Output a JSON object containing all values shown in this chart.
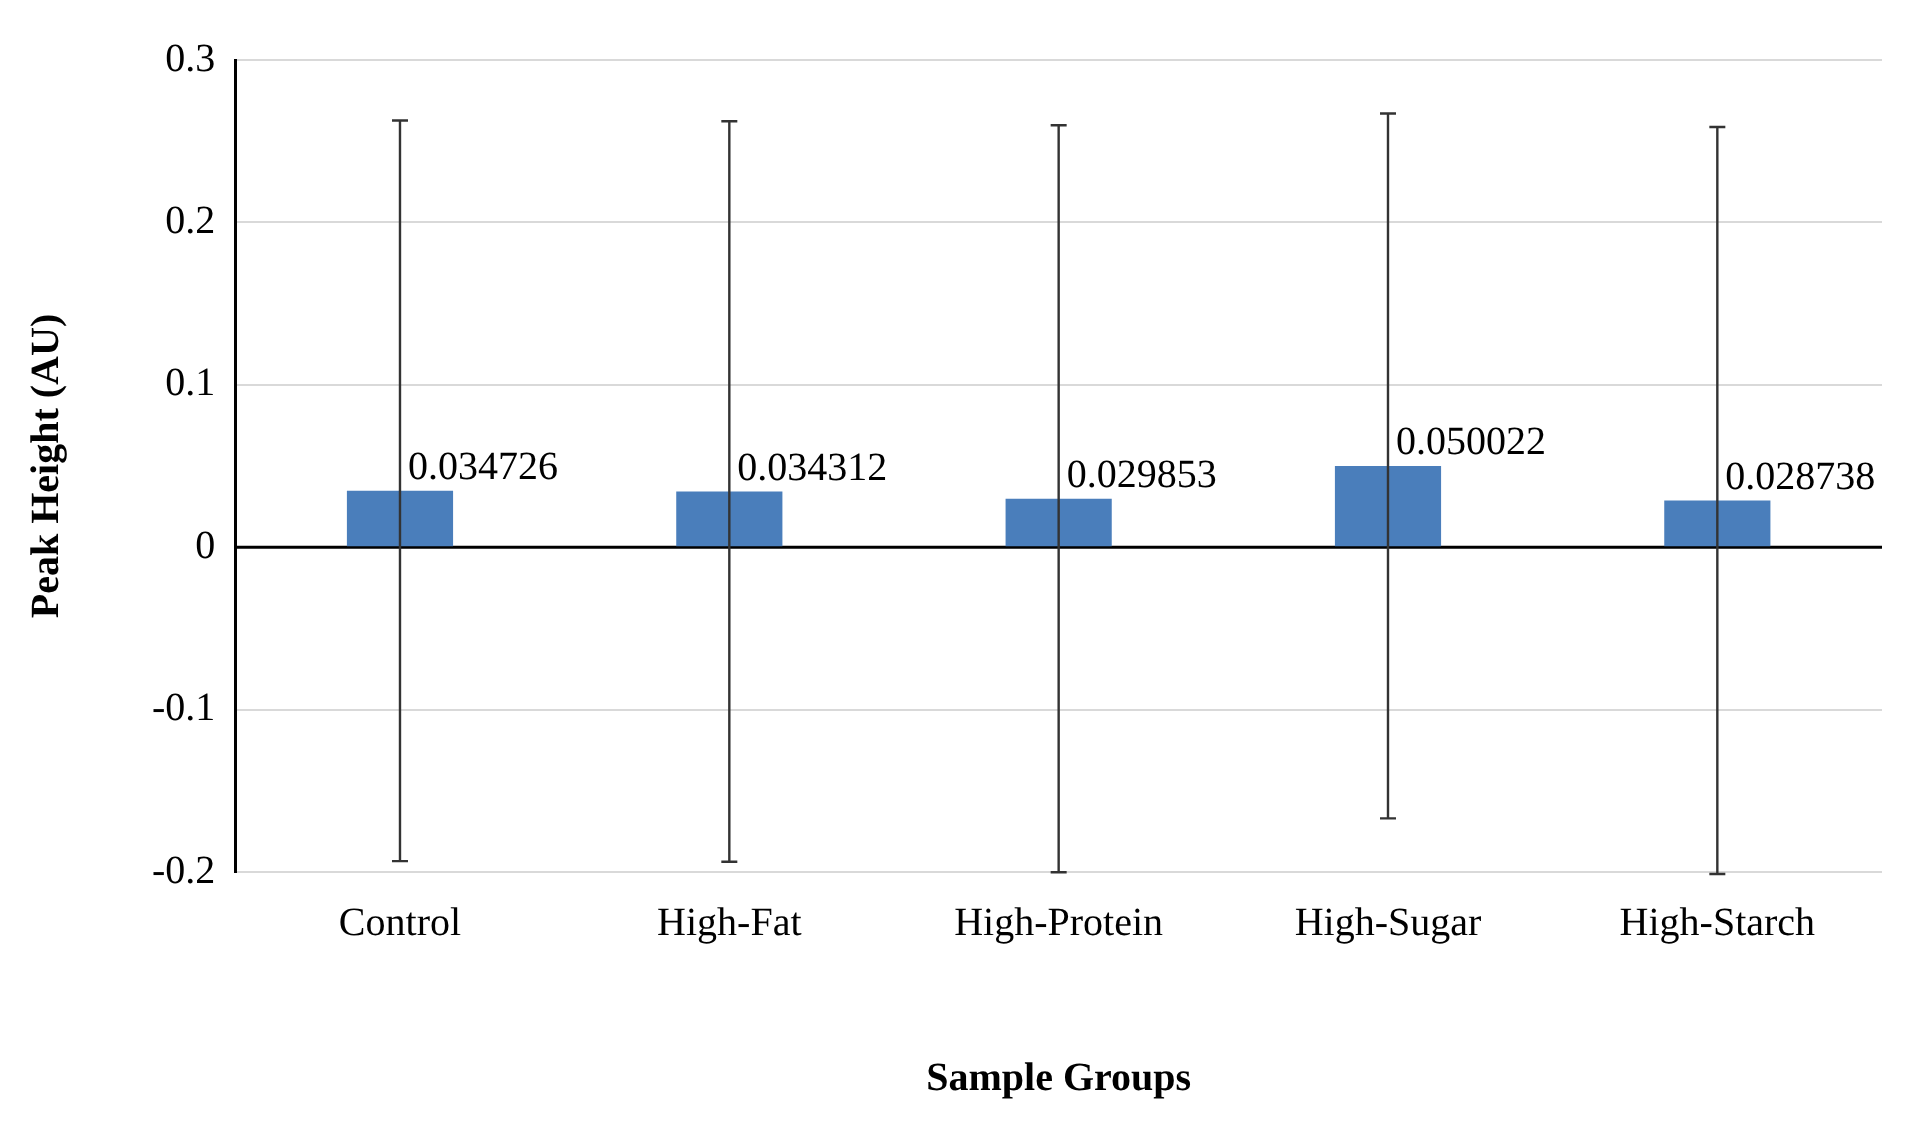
{
  "chart_data": {
    "type": "bar",
    "xlabel": "Sample Groups",
    "ylabel": "Peak Height (AU)",
    "categories": [
      "Control",
      "High-Fat",
      "High-Protein",
      "High-Sugar",
      "High-Starch"
    ],
    "values": [
      0.034726,
      0.034312,
      0.029853,
      0.050022,
      0.028738
    ],
    "errors": [
      0.228,
      0.228,
      0.23,
      0.217,
      0.23
    ],
    "color": "#4a7ebb",
    "ylim": [
      -0.2,
      0.3
    ],
    "yticks": [
      -0.2,
      -0.1,
      0,
      0.1,
      0.2,
      0.3
    ],
    "grid": "y",
    "data_labels": true,
    "legend": false
  }
}
